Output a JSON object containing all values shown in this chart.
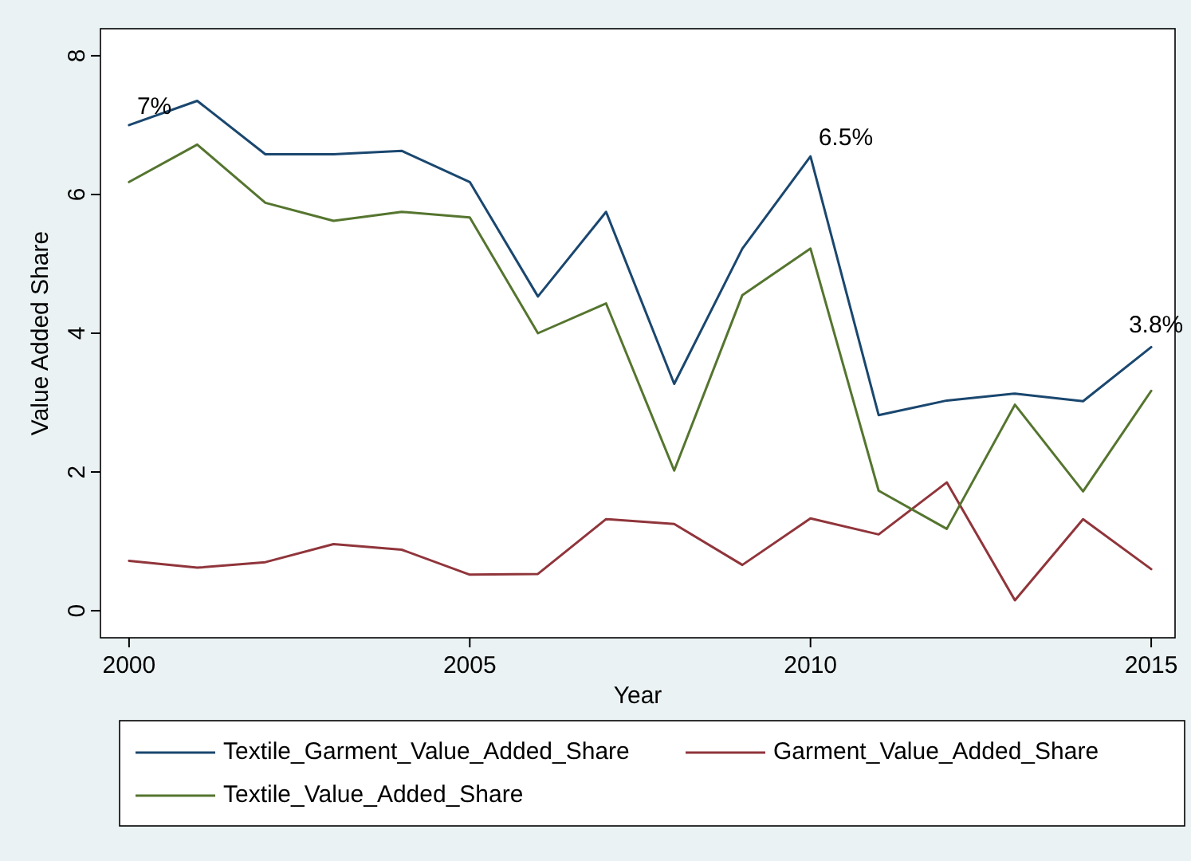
{
  "chart_data": {
    "type": "line",
    "xlabel": "Year",
    "ylabel": "Value Added Share",
    "x": [
      2000,
      2001,
      2002,
      2003,
      2004,
      2005,
      2006,
      2007,
      2008,
      2009,
      2010,
      2011,
      2012,
      2013,
      2014,
      2015
    ],
    "series": [
      {
        "name": "Textile_Garment_Value_Added_Share",
        "color": "#1a476f",
        "values": [
          7.0,
          7.35,
          6.58,
          6.58,
          6.63,
          6.18,
          4.53,
          5.75,
          3.27,
          5.22,
          6.55,
          2.82,
          3.03,
          3.13,
          3.02,
          3.8
        ]
      },
      {
        "name": "Garment_Value_Added_Share",
        "color": "#90353b",
        "values": [
          0.72,
          0.62,
          0.7,
          0.96,
          0.88,
          0.52,
          0.53,
          1.32,
          1.25,
          0.66,
          1.33,
          1.1,
          1.85,
          0.15,
          1.32,
          0.6
        ]
      },
      {
        "name": "Textile_Value_Added_Share",
        "color": "#55752f",
        "values": [
          6.18,
          6.72,
          5.88,
          5.62,
          5.75,
          5.67,
          4.0,
          4.43,
          2.02,
          4.55,
          5.22,
          1.73,
          1.18,
          2.97,
          1.72,
          3.17
        ]
      }
    ],
    "xlim": [
      1999.58,
      2015.35
    ],
    "xticks": [
      2000,
      2005,
      2010,
      2015
    ],
    "ylim": [
      -0.39,
      8.39
    ],
    "yticks": [
      0,
      2,
      4,
      6,
      8
    ],
    "annotations": [
      {
        "text": "7%",
        "x": 2000,
        "y": 7.0
      },
      {
        "text": "6.5%",
        "x": 2010,
        "y": 6.55
      },
      {
        "text": "3.8%",
        "x": 2015,
        "y": 3.8
      }
    ],
    "grid": false,
    "legend": "bottom",
    "marker": "none",
    "line_style": "solid"
  }
}
